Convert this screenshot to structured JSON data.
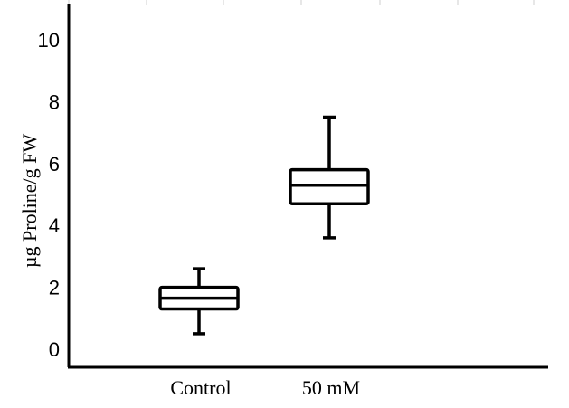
{
  "chart_data": {
    "type": "box",
    "title": "",
    "xlabel": "",
    "ylabel": "µg  Proline/g FW",
    "ylim": [
      -0.5,
      11.2
    ],
    "yticks": [
      0,
      2,
      4,
      6,
      8,
      10
    ],
    "grid": false,
    "categories": [
      "Control",
      "50 mM"
    ],
    "boxes": [
      {
        "category": "Control",
        "min": 0.5,
        "q1": 1.3,
        "median": 1.65,
        "q3": 2.0,
        "max": 2.6
      },
      {
        "category": "50 mM",
        "min": 3.6,
        "q1": 4.7,
        "median": 5.3,
        "q3": 5.8,
        "max": 7.5
      }
    ]
  }
}
